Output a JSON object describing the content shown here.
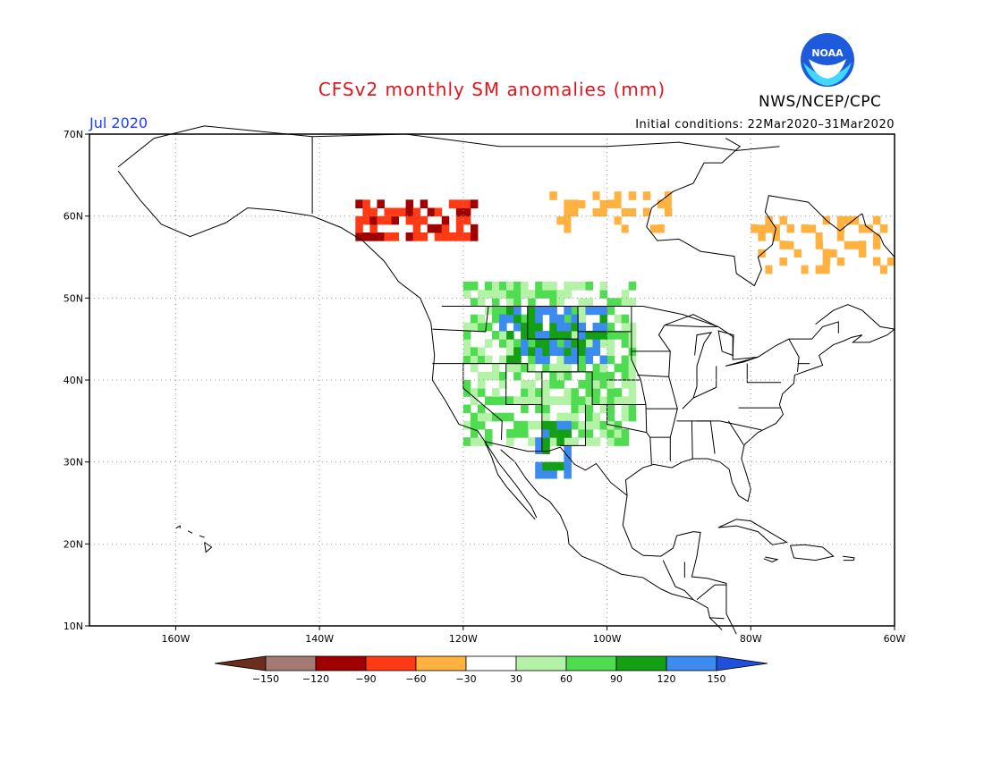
{
  "title": "CFSv2 monthly SM anomalies (mm)",
  "valid_month": "Jul 2020",
  "initial_conditions": "Initial conditions: 22Mar2020–31Mar2020",
  "agency": "NWS/NCEP/CPC",
  "logo_text": "NOAA",
  "colors": {
    "title": "#e0141e",
    "month": "#1e3cff",
    "grid": "#999999"
  },
  "map": {
    "lon_range": [
      -172,
      -60
    ],
    "lat_range": [
      10,
      70
    ],
    "lat_labels": [
      "70N",
      "60N",
      "50N",
      "40N",
      "30N",
      "20N",
      "10N"
    ],
    "lon_labels": [
      "160W",
      "140W",
      "120W",
      "100W",
      "80W",
      "60W"
    ]
  },
  "legend": {
    "colors": [
      "#6b2d1e",
      "#a47a72",
      "#a00000",
      "#ff3a14",
      "#ffb240",
      "#ffffff",
      "#b4f2a8",
      "#50dc50",
      "#14a014",
      "#3c8cf0",
      "#1e50dc"
    ],
    "labels": [
      "−150",
      "−120",
      "−90",
      "−60",
      "−30",
      "30",
      "60",
      "90",
      "120",
      "150"
    ]
  },
  "chart_data": {
    "type": "heatmap",
    "title": "CFSv2 monthly SM anomalies (mm)",
    "unit": "mm",
    "valid": "Jul 2020",
    "categories_bounds": [
      -150,
      -120,
      -90,
      -60,
      -30,
      30,
      60,
      90,
      120,
      150
    ],
    "regions": [
      {
        "lon": [
          -115,
          -100
        ],
        "lat": [
          42,
          49
        ],
        "anomaly": 120
      },
      {
        "lon": [
          -110,
          -105
        ],
        "lat": [
          28,
          35
        ],
        "anomaly": 120
      },
      {
        "lon": [
          -120,
          -96
        ],
        "lat": [
          32,
          52
        ],
        "anomaly": 60
      },
      {
        "lon": [
          -135,
          -118
        ],
        "lat": [
          57,
          62
        ],
        "anomaly": -90
      },
      {
        "lon": [
          -80,
          -60
        ],
        "lat": [
          53,
          60
        ],
        "anomaly": -30
      },
      {
        "lon": [
          -108,
          -90
        ],
        "lat": [
          58,
          63
        ],
        "anomaly": -30
      }
    ]
  }
}
